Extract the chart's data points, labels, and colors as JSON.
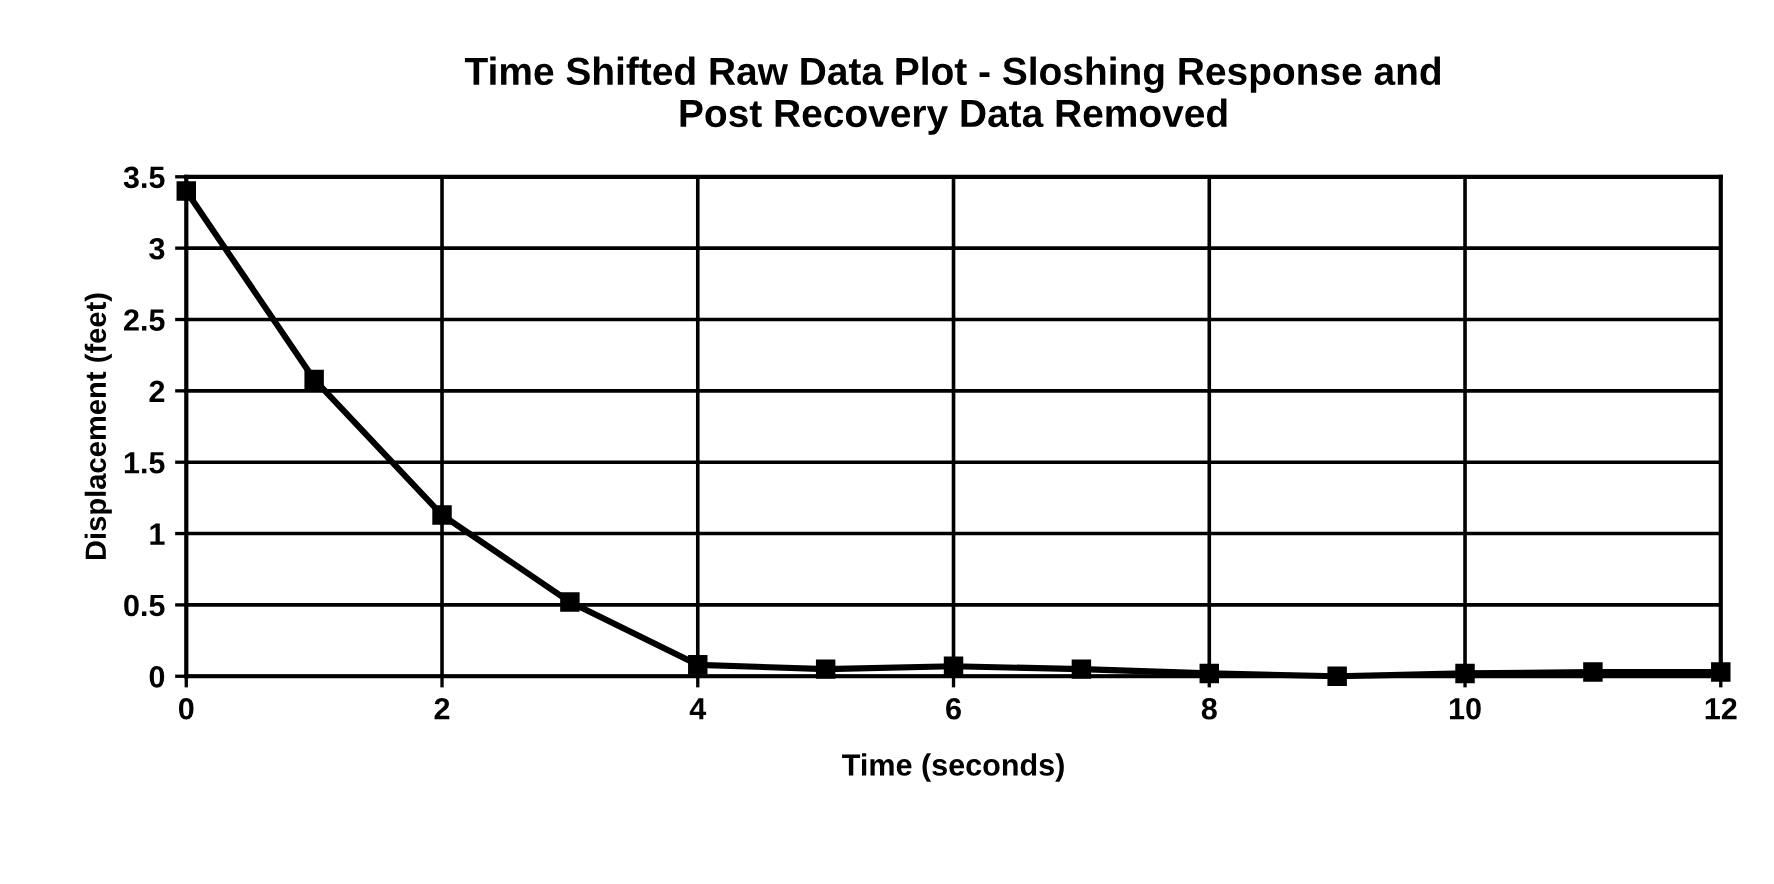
{
  "chart_data": {
    "type": "line",
    "title": "Time Shifted Raw Data Plot - Sloshing Response and\nPost Recovery Data Removed",
    "xlabel": "Time (seconds)",
    "ylabel": "Displacement (feet)",
    "x": [
      0,
      1,
      2,
      3,
      4,
      5,
      6,
      7,
      8,
      9,
      10,
      11,
      12
    ],
    "series": [
      {
        "color": "#000000",
        "values": [
          3.4,
          2.08,
          1.13,
          0.52,
          0.08,
          0.05,
          0.07,
          0.05,
          0.02,
          0.0,
          0.02,
          0.03,
          0.03
        ]
      }
    ],
    "xlim": [
      0,
      12
    ],
    "xticks": [
      0,
      2,
      4,
      6,
      8,
      10,
      12
    ],
    "ylim": [
      0,
      3.5
    ],
    "yticks": [
      0,
      0.5,
      1,
      1.5,
      2,
      2.5,
      3,
      3.5
    ],
    "grid": true,
    "marker": "square",
    "line_style": "solid",
    "legend": false
  }
}
